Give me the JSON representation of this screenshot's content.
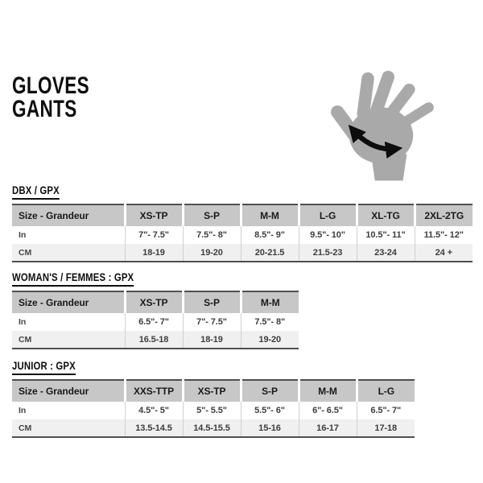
{
  "page_title": {
    "line1": "GLOVES",
    "line2": "GANTS"
  },
  "icons": {
    "hand": "hand-with-measure-arrow-icon"
  },
  "colors": {
    "hand_gray": "#a9a9a9",
    "header_bg": "#c7c7c7",
    "row_alt_bg": "#f0f0f0",
    "border_dark": "#4f4f4f",
    "arrow_black": "#0d0d0d"
  },
  "tables": [
    {
      "title": "DBX / GPX",
      "columns": [
        "Size - Grandeur",
        "XS-TP",
        "S-P",
        "M-M",
        "L-G",
        "XL-TG",
        "2XL-2TG"
      ],
      "rows": [
        {
          "label": "In",
          "values": [
            "7\"- 7.5\"",
            "7.5\"- 8\"",
            "8.5\"- 9\"",
            "9.5\"- 10\"",
            "10.5\"- 11\"",
            "11.5\"- 12\""
          ]
        },
        {
          "label": "CM",
          "values": [
            "18-19",
            "19-20",
            "20-21.5",
            "21.5-23",
            "23-24",
            "24 +"
          ]
        }
      ]
    },
    {
      "title": "WOMAN'S / FEMMES : GPX",
      "columns": [
        "Size - Grandeur",
        "XS-TP",
        "S-P",
        "M-M"
      ],
      "rows": [
        {
          "label": "In",
          "values": [
            "6.5\"- 7\"",
            "7\"- 7.5\"",
            "7.5\"- 8\""
          ]
        },
        {
          "label": "CM",
          "values": [
            "16.5-18",
            "18-19",
            "19-20"
          ]
        }
      ]
    },
    {
      "title": "JUNIOR : GPX",
      "columns": [
        "Size - Grandeur",
        "XXS-TTP",
        "XS-TP",
        "S-P",
        "M-M",
        "L-G"
      ],
      "rows": [
        {
          "label": "In",
          "values": [
            "4.5\"- 5\"",
            "5\"- 5.5\"",
            "5.5\"- 6\"",
            "6\"- 6.5\"",
            "6.5\"- 7\""
          ]
        },
        {
          "label": "CM",
          "values": [
            "13.5-14.5",
            "14.5-15.5",
            "15-16",
            "16-17",
            "17-18"
          ]
        }
      ]
    }
  ]
}
